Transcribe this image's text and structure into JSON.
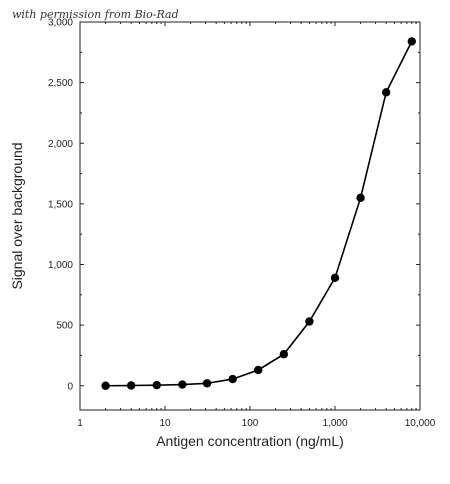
{
  "credit": "with permission from Bio-Rad",
  "chart_data": {
    "type": "line",
    "xlabel": "Antigen concentration (ng/mL)",
    "ylabel": "Signal over background",
    "xscale": "log",
    "xlim": [
      1,
      10000
    ],
    "ylim": [
      -200,
      3000
    ],
    "xticks": [
      1,
      10,
      100,
      1000,
      10000
    ],
    "xtick_labels": [
      "1",
      "10",
      "100",
      "1,000",
      "10,000"
    ],
    "yticks": [
      0,
      500,
      1000,
      1500,
      2000,
      2500,
      3000
    ],
    "ytick_labels": [
      "0",
      "500",
      "1,000",
      "1,500",
      "2,000",
      "2,500",
      "3,000"
    ],
    "grid": false,
    "series": [
      {
        "x": [
          2,
          4,
          8,
          16,
          31.25,
          62.5,
          125,
          250,
          500,
          1000,
          2000,
          4000,
          8000
        ],
        "y": [
          0,
          2,
          5,
          10,
          20,
          55,
          130,
          260,
          530,
          890,
          1550,
          2420,
          2840
        ]
      }
    ],
    "color": "#000000"
  }
}
